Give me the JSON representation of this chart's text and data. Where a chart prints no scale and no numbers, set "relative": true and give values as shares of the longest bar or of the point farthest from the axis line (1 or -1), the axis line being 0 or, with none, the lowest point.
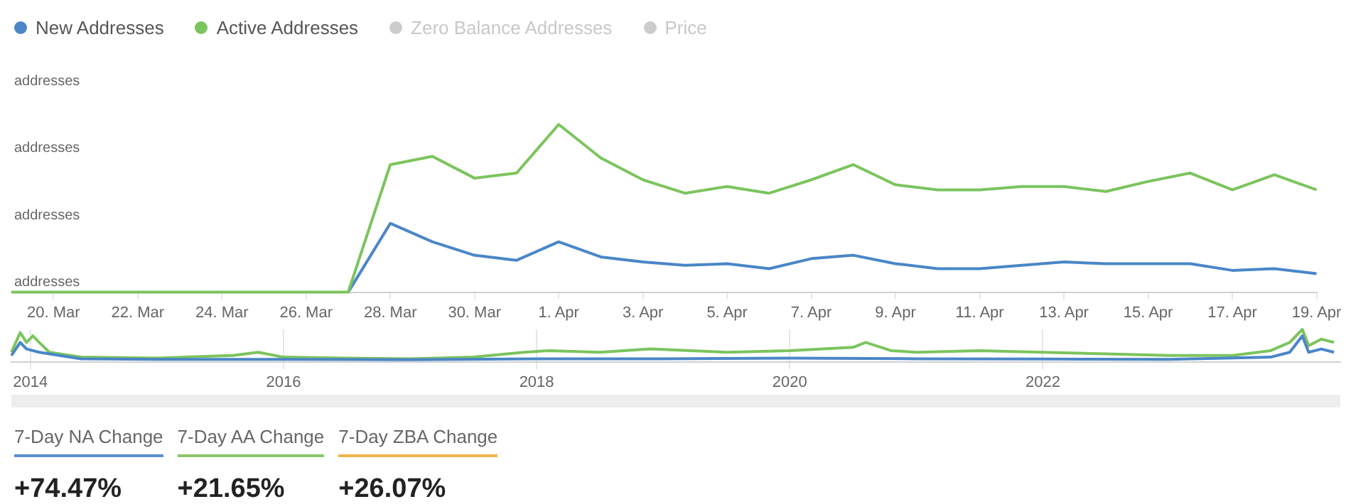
{
  "chart_data": [
    {
      "type": "line",
      "relative": true,
      "legend": "top left",
      "marker": "none",
      "line_style": "solid",
      "x": [
        "--03-19",
        "--03-20",
        "--03-21",
        "--03-22",
        "--03-23",
        "--03-24",
        "--03-25",
        "--03-26",
        "--03-27",
        "--03-28",
        "--03-29",
        "--03-30",
        "--03-31",
        "--04-01",
        "--04-02",
        "--04-03",
        "--04-04",
        "--04-05",
        "--04-06",
        "--04-07",
        "--04-08",
        "--04-09",
        "--04-10",
        "--04-11",
        "--04-12",
        "--04-13",
        "--04-14",
        "--04-15",
        "--04-16",
        "--04-17",
        "--04-18",
        "--04-19"
      ],
      "xlim": [
        "--03-19",
        "--04-19"
      ],
      "xticks": [
        {
          "value": "--03-20",
          "label": "20. Mar"
        },
        {
          "value": "--03-22",
          "label": "22. Mar"
        },
        {
          "value": "--03-24",
          "label": "24. Mar"
        },
        {
          "value": "--03-26",
          "label": "26. Mar"
        },
        {
          "value": "--03-28",
          "label": "28. Mar"
        },
        {
          "value": "--03-30",
          "label": "30. Mar"
        },
        {
          "value": "--04-01",
          "label": "1. Apr"
        },
        {
          "value": "--04-03",
          "label": "3. Apr"
        },
        {
          "value": "--04-05",
          "label": "5. Apr"
        },
        {
          "value": "--04-07",
          "label": "7. Apr"
        },
        {
          "value": "--04-09",
          "label": "9. Apr"
        },
        {
          "value": "--04-11",
          "label": "11. Apr"
        },
        {
          "value": "--04-13",
          "label": "13. Apr"
        },
        {
          "value": "--04-15",
          "label": "15. Apr"
        },
        {
          "value": "--04-17",
          "label": "17. Apr"
        },
        {
          "value": "--04-19",
          "label": "19. Apr"
        }
      ],
      "annotations": [
        "addresses",
        "addresses",
        "addresses",
        "addresses"
      ],
      "series": [
        {
          "name": "New Addresses",
          "color": "#4a86c8",
          "values": [
            null,
            null,
            null,
            null,
            null,
            null,
            null,
            null,
            0,
            0.41,
            0.3,
            0.22,
            0.19,
            0.3,
            0.21,
            0.18,
            0.16,
            0.17,
            0.14,
            0.2,
            0.22,
            0.17,
            0.14,
            0.14,
            0.16,
            0.18,
            0.17,
            0.17,
            0.17,
            0.13,
            0.14,
            0.11
          ]
        },
        {
          "name": "Active Addresses",
          "color": "#7cc45e",
          "values": [
            0,
            0,
            0,
            0,
            0,
            0,
            0,
            0,
            0,
            0.76,
            0.81,
            0.68,
            0.71,
            1,
            0.8,
            0.67,
            0.59,
            0.63,
            0.59,
            0.67,
            0.76,
            0.64,
            0.61,
            0.61,
            0.63,
            0.63,
            0.6,
            0.66,
            0.71,
            0.61,
            0.7,
            0.61
          ]
        },
        {
          "name": "Zero Balance Addresses",
          "color": "#cccccc",
          "values": [
            null,
            null,
            null,
            null,
            null,
            null,
            null,
            null,
            null,
            null,
            null,
            null,
            null,
            null,
            null,
            null,
            null,
            null,
            null,
            null,
            null,
            null,
            null,
            null,
            null,
            null,
            null,
            null,
            null,
            null,
            null,
            null
          ]
        },
        {
          "name": "Price",
          "color": "#cccccc",
          "values": [
            null,
            null,
            null,
            null,
            null,
            null,
            null,
            null,
            null,
            null,
            null,
            null,
            null,
            null,
            null,
            null,
            null,
            null,
            null,
            null,
            null,
            null,
            null,
            null,
            null,
            null,
            null,
            null,
            null,
            null,
            null,
            null
          ]
        }
      ]
    },
    {
      "type": "line",
      "relative": true,
      "grid": "x",
      "marker": "none",
      "line_style": "solid",
      "xlim": [
        2013.85,
        2024.35
      ],
      "xticks": [
        2014,
        2016,
        2018,
        2020,
        2022
      ],
      "series": [
        {
          "color": "#7cc45e",
          "x": [
            2013.85,
            2013.92,
            2013.97,
            2014.02,
            2014.07,
            2014.15,
            2014.4,
            2015,
            2015.6,
            2015.8,
            2016,
            2016.5,
            2017,
            2017.5,
            2017.9,
            2018.1,
            2018.5,
            2018.9,
            2019.5,
            2020,
            2020.5,
            2020.6,
            2020.8,
            2021,
            2021.5,
            2022,
            2022.5,
            2023,
            2023.5,
            2023.8,
            2023.95,
            2024.05,
            2024.1,
            2024.2,
            2024.3
          ],
          "values": [
            0.3,
            0.9,
            0.6,
            0.8,
            0.6,
            0.3,
            0.15,
            0.12,
            0.2,
            0.3,
            0.15,
            0.12,
            0.1,
            0.15,
            0.3,
            0.35,
            0.3,
            0.4,
            0.3,
            0.35,
            0.45,
            0.6,
            0.35,
            0.3,
            0.35,
            0.3,
            0.25,
            0.2,
            0.2,
            0.35,
            0.6,
            1,
            0.5,
            0.7,
            0.6
          ]
        },
        {
          "color": "#4a86c8",
          "x": [
            2013.85,
            2013.92,
            2013.97,
            2014.07,
            2014.4,
            2015,
            2016,
            2017,
            2018,
            2019,
            2020,
            2021,
            2022,
            2023,
            2023.8,
            2023.95,
            2024.05,
            2024.1,
            2024.2,
            2024.3
          ],
          "values": [
            0.2,
            0.6,
            0.4,
            0.3,
            0.1,
            0.08,
            0.08,
            0.07,
            0.1,
            0.1,
            0.12,
            0.1,
            0.09,
            0.08,
            0.15,
            0.3,
            0.8,
            0.3,
            0.4,
            0.3
          ]
        }
      ]
    },
    {
      "type": "other",
      "categories": [
        "7-Day NA Change",
        "7-Day AA Change",
        "7-Day ZBA Change"
      ],
      "value_labels": [
        "+74.47%",
        "+21.65%",
        "+26.07%"
      ],
      "colors": [
        "#5b8fd0",
        "#8cc66a",
        "#f0b54a"
      ]
    }
  ]
}
